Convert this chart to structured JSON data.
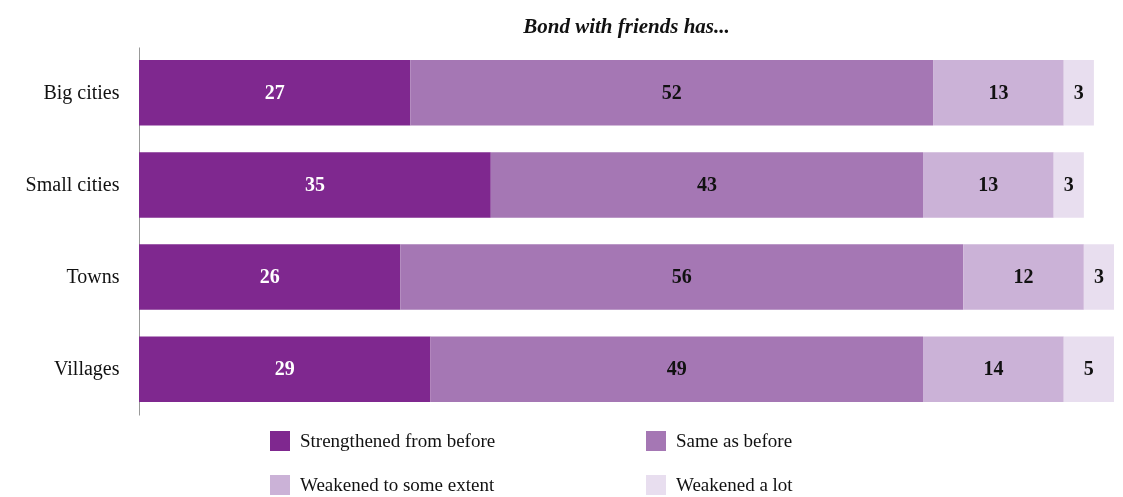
{
  "chart_data": {
    "type": "bar",
    "orientation": "horizontal",
    "stacked": true,
    "title": "Bond with friends has...",
    "categories": [
      "Big cities",
      "Small cities",
      "Towns",
      "Villages"
    ],
    "series": [
      {
        "name": "Strengthened from before",
        "color": "#7f288f",
        "values": [
          27,
          35,
          26,
          29
        ]
      },
      {
        "name": "Same as before",
        "color": "#a577b4",
        "values": [
          52,
          43,
          56,
          49
        ]
      },
      {
        "name": "Weakened to some extent",
        "color": "#cbb2d7",
        "values": [
          13,
          13,
          12,
          14
        ]
      },
      {
        "name": "Weakened a lot",
        "color": "#e8deef",
        "values": [
          3,
          3,
          3,
          5
        ]
      }
    ],
    "data_labels": true,
    "legend": "bottom",
    "grid": false
  }
}
